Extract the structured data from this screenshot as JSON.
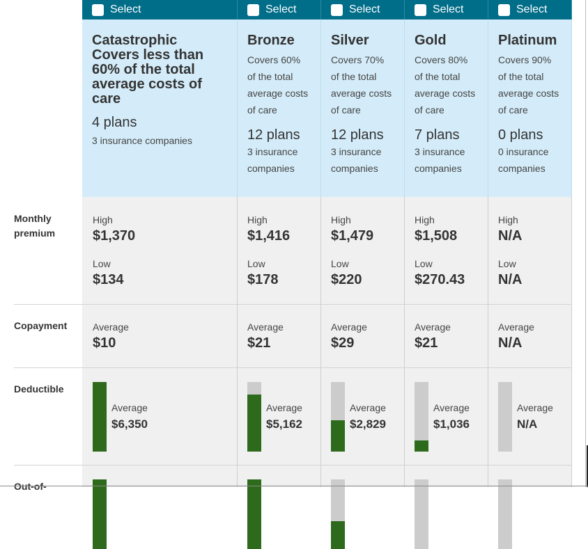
{
  "row_labels": {
    "monthly_premium": "Monthly premium",
    "copayment": "Copayment",
    "deductible": "Deductible",
    "out_of_pocket": "Out-of-"
  },
  "plans": [
    {
      "select_label": "Select",
      "name": "Catastrophic",
      "description": "Covers less than 60% of the total average costs of care",
      "plans_count": "4 plans",
      "companies": "3 insurance companies",
      "premium_high_label": "High",
      "premium_high": "$1,370",
      "premium_low_label": "Low",
      "premium_low": "$134",
      "copay_label": "Average",
      "copay": "$10",
      "deductible_label": "Average",
      "deductible": "$6,350",
      "deductible_fill": 1.0,
      "oop_fill": 1.0
    },
    {
      "select_label": "Select",
      "name": "Bronze",
      "description": "Covers 60% of the total average costs of care",
      "plans_count": "12 plans",
      "companies": "3 insurance companies",
      "premium_high_label": "High",
      "premium_high": "$1,416",
      "premium_low_label": "Low",
      "premium_low": "$178",
      "copay_label": "Average",
      "copay": "$21",
      "deductible_label": "Average",
      "deductible": "$5,162",
      "deductible_fill": 0.82,
      "oop_fill": 1.0
    },
    {
      "select_label": "Select",
      "name": "Silver",
      "description": "Covers 70% of the total average costs of care",
      "plans_count": "12 plans",
      "companies": "3 insurance companies",
      "premium_high_label": "High",
      "premium_high": "$1,479",
      "premium_low_label": "Low",
      "premium_low": "$220",
      "copay_label": "Average",
      "copay": "$29",
      "deductible_label": "Average",
      "deductible": "$2,829",
      "deductible_fill": 0.45,
      "oop_fill": 0.4
    },
    {
      "select_label": "Select",
      "name": "Gold",
      "description": "Covers 80% of the total average costs of care",
      "plans_count": "7 plans",
      "companies": "3 insurance companies",
      "premium_high_label": "High",
      "premium_high": "$1,508",
      "premium_low_label": "Low",
      "premium_low": "$270.43",
      "copay_label": "Average",
      "copay": "$21",
      "deductible_label": "Average",
      "deductible": "$1,036",
      "deductible_fill": 0.16,
      "oop_fill": 0.0
    },
    {
      "select_label": "Select",
      "name": "Platinum",
      "description": "Covers 90% of the total average costs of care",
      "plans_count": "0 plans",
      "companies": "0 insurance companies",
      "premium_high_label": "High",
      "premium_high": "N/A",
      "premium_low_label": "Low",
      "premium_low": "N/A",
      "copay_label": "Average",
      "copay": "N/A",
      "deductible_label": "Average",
      "deductible": "N/A",
      "deductible_fill": 0.0,
      "oop_fill": 0.0
    }
  ],
  "colors": {
    "select_bar": "#006d89",
    "header_bg": "#d4ecf9",
    "data_bg": "#f0f0f0",
    "bar_fill": "#2d6a1c",
    "bar_track": "#cccccc"
  }
}
